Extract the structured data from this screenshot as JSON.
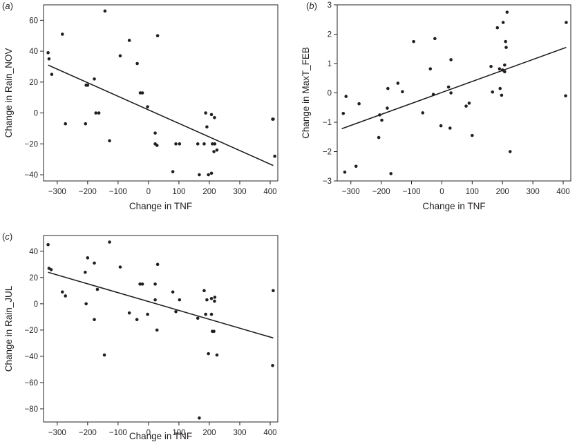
{
  "chart_data": [
    {
      "type": "scatter",
      "panel_label": "(a)",
      "xlabel": "Change in TNF",
      "ylabel": "Change in Rain_NOV",
      "xlim": [
        -345,
        425
      ],
      "ylim": [
        -44,
        70
      ],
      "xticks": [
        -300,
        -200,
        -100,
        0,
        100,
        200,
        300,
        400
      ],
      "yticks": [
        -40,
        -20,
        0,
        20,
        40,
        60
      ],
      "fit_line": {
        "x": [
          -330,
          410
        ],
        "y": [
          31,
          -34
        ]
      },
      "points": [
        [
          -330,
          39
        ],
        [
          -327,
          35
        ],
        [
          -318,
          25
        ],
        [
          -283,
          51
        ],
        [
          -273,
          -7
        ],
        [
          -207,
          -7
        ],
        [
          -205,
          18
        ],
        [
          -200,
          18
        ],
        [
          -178,
          22
        ],
        [
          -173,
          0
        ],
        [
          -163,
          0
        ],
        [
          -143,
          66
        ],
        [
          -128,
          -18
        ],
        [
          -93,
          37
        ],
        [
          -63,
          47
        ],
        [
          -37,
          32
        ],
        [
          -27,
          13
        ],
        [
          -20,
          13
        ],
        [
          -3,
          4
        ],
        [
          22,
          -13
        ],
        [
          22,
          -20
        ],
        [
          28,
          -21
        ],
        [
          30,
          50
        ],
        [
          80,
          -38
        ],
        [
          90,
          -20
        ],
        [
          102,
          -20
        ],
        [
          162,
          -20
        ],
        [
          167,
          -40
        ],
        [
          183,
          -20
        ],
        [
          188,
          0
        ],
        [
          192,
          -9
        ],
        [
          197,
          -40
        ],
        [
          207,
          -39
        ],
        [
          207,
          -1
        ],
        [
          210,
          -20
        ],
        [
          215,
          -25
        ],
        [
          217,
          -3
        ],
        [
          218,
          -20
        ],
        [
          225,
          -24
        ],
        [
          408,
          -4
        ],
        [
          410,
          -4
        ],
        [
          415,
          -28
        ]
      ]
    },
    {
      "type": "scatter",
      "panel_label": "(b)",
      "xlabel": "Change in TNF",
      "ylabel": "Change in MaxT_FEB",
      "xlim": [
        -345,
        425
      ],
      "ylim": [
        -3,
        3
      ],
      "xticks": [
        -300,
        -200,
        -100,
        0,
        100,
        200,
        300,
        400
      ],
      "yticks": [
        -3,
        -2,
        -1,
        0,
        1,
        2,
        3
      ],
      "fit_line": {
        "x": [
          -330,
          410
        ],
        "y": [
          -1.22,
          1.55
        ]
      },
      "points": [
        [
          -325,
          -0.7
        ],
        [
          -320,
          -2.7
        ],
        [
          -316,
          -0.12
        ],
        [
          -283,
          -2.5
        ],
        [
          -273,
          -0.37
        ],
        [
          -208,
          -1.52
        ],
        [
          -205,
          -0.75
        ],
        [
          -198,
          -0.93
        ],
        [
          -180,
          -0.52
        ],
        [
          -178,
          0.15
        ],
        [
          -168,
          -2.75
        ],
        [
          -145,
          0.33
        ],
        [
          -130,
          0.04
        ],
        [
          -93,
          1.75
        ],
        [
          -63,
          -0.68
        ],
        [
          -38,
          0.82
        ],
        [
          -28,
          -0.05
        ],
        [
          -23,
          1.85
        ],
        [
          -3,
          -1.12
        ],
        [
          22,
          0.2
        ],
        [
          27,
          -1.2
        ],
        [
          30,
          0.0
        ],
        [
          30,
          1.13
        ],
        [
          80,
          -0.45
        ],
        [
          90,
          -0.35
        ],
        [
          100,
          -1.45
        ],
        [
          162,
          0.9
        ],
        [
          167,
          0.03
        ],
        [
          183,
          2.22
        ],
        [
          190,
          0.82
        ],
        [
          192,
          0.15
        ],
        [
          197,
          -0.08
        ],
        [
          200,
          0.78
        ],
        [
          202,
          2.4
        ],
        [
          207,
          0.95
        ],
        [
          207,
          0.72
        ],
        [
          210,
          1.75
        ],
        [
          212,
          1.55
        ],
        [
          215,
          2.75
        ],
        [
          225,
          -2.0
        ],
        [
          408,
          -0.1
        ],
        [
          410,
          2.4
        ]
      ]
    },
    {
      "type": "scatter",
      "panel_label": "(c)",
      "xlabel": "Change in TNF",
      "ylabel": "Change in Rain_JUL",
      "xlim": [
        -345,
        425
      ],
      "ylim": [
        -90,
        52
      ],
      "xticks": [
        -300,
        -200,
        -100,
        0,
        100,
        200,
        300,
        400
      ],
      "yticks": [
        -80,
        -60,
        -40,
        -20,
        0,
        20,
        40
      ],
      "fit_line": {
        "x": [
          -330,
          410
        ],
        "y": [
          24,
          -26
        ]
      },
      "points": [
        [
          -330,
          45
        ],
        [
          -327,
          27
        ],
        [
          -320,
          26
        ],
        [
          -283,
          9
        ],
        [
          -273,
          6
        ],
        [
          -208,
          24
        ],
        [
          -205,
          0
        ],
        [
          -200,
          35
        ],
        [
          -178,
          31
        ],
        [
          -178,
          -12
        ],
        [
          -168,
          11
        ],
        [
          -145,
          -39
        ],
        [
          -128,
          47
        ],
        [
          -93,
          28
        ],
        [
          -63,
          -7
        ],
        [
          -38,
          -12
        ],
        [
          -28,
          15
        ],
        [
          -20,
          15
        ],
        [
          -3,
          -8
        ],
        [
          22,
          15
        ],
        [
          22,
          3
        ],
        [
          28,
          -20
        ],
        [
          30,
          30
        ],
        [
          80,
          9
        ],
        [
          90,
          -6
        ],
        [
          102,
          3
        ],
        [
          162,
          -11
        ],
        [
          167,
          -87
        ],
        [
          183,
          10
        ],
        [
          188,
          -8
        ],
        [
          192,
          3
        ],
        [
          197,
          -38
        ],
        [
          207,
          -8
        ],
        [
          207,
          4
        ],
        [
          210,
          -21
        ],
        [
          215,
          -21
        ],
        [
          217,
          2
        ],
        [
          218,
          5
        ],
        [
          225,
          -39
        ],
        [
          408,
          -47
        ],
        [
          410,
          10
        ]
      ]
    }
  ]
}
